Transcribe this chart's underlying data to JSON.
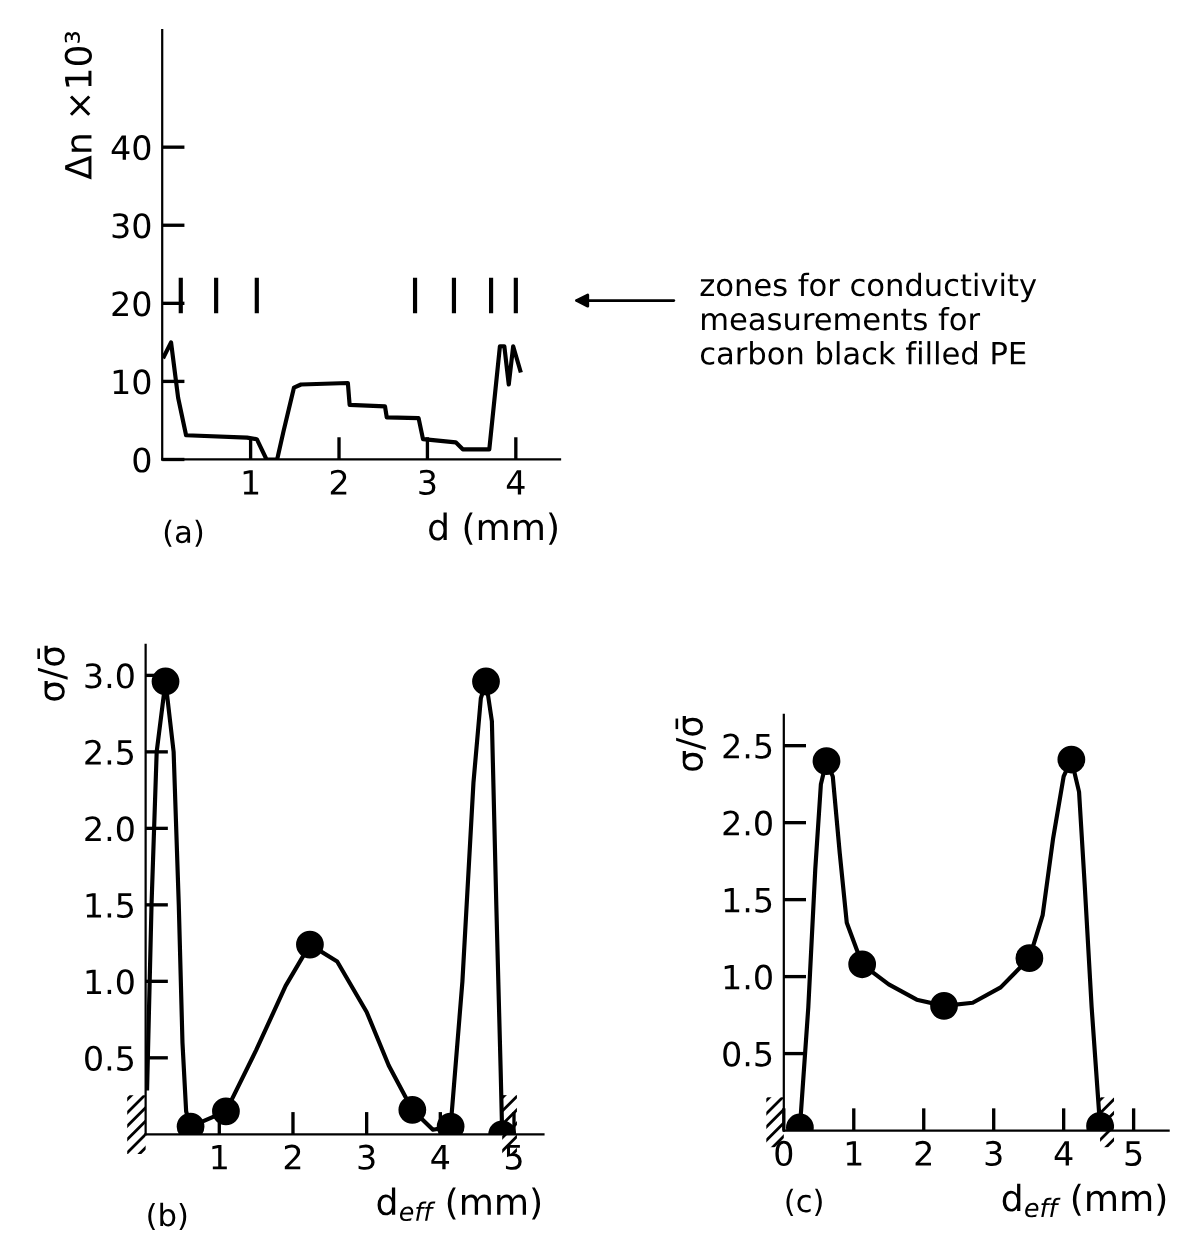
{
  "chart_data": [
    {
      "type": "line",
      "xlabel": "d (mm)",
      "ylabel": "Δn ×10³",
      "xlim": [
        0,
        4.5
      ],
      "ylim": [
        0,
        55
      ],
      "xticks": [
        1,
        2,
        3,
        4
      ],
      "yticks": [
        0,
        10,
        20,
        30,
        40
      ],
      "grid": false,
      "legend": false,
      "annotations": [
        "(a)",
        "zones for conductivity\nmeasurements for\ncarbon black filled PE"
      ],
      "series": [
        {
          "color": "#000000",
          "marker": "none",
          "x": [
            0.02,
            0.1,
            0.18,
            0.27,
            0.96,
            1.07,
            1.18,
            1.3,
            1.37,
            1.49,
            1.57,
            2.1,
            2.12,
            2.52,
            2.54,
            2.9,
            2.95,
            3.32,
            3.4,
            3.7,
            3.82,
            3.87,
            3.92,
            3.97,
            4.05
          ],
          "values": [
            13.2,
            15,
            7.9,
            3.1,
            2.8,
            2.6,
            0,
            0,
            3.5,
            9.2,
            9.6,
            9.8,
            7.0,
            6.8,
            5.4,
            5.3,
            2.6,
            2.2,
            1.3,
            1.3,
            14.5,
            14.5,
            9.6,
            14.5,
            11.4
          ]
        },
        {
          "color": "#000000",
          "marker": "none",
          "x": [
            0.21,
            0.21
          ],
          "values": [
            19,
            23
          ]
        },
        {
          "color": "#000000",
          "marker": "none",
          "x": [
            0.61,
            0.61
          ],
          "values": [
            19,
            23
          ]
        },
        {
          "color": "#000000",
          "marker": "none",
          "x": [
            1.07,
            1.07
          ],
          "values": [
            19,
            23
          ]
        },
        {
          "color": "#000000",
          "marker": "none",
          "x": [
            2.86,
            2.86
          ],
          "values": [
            19,
            23
          ]
        },
        {
          "color": "#000000",
          "marker": "none",
          "x": [
            3.3,
            3.3
          ],
          "values": [
            19,
            23
          ]
        },
        {
          "color": "#000000",
          "marker": "none",
          "x": [
            3.72,
            3.72
          ],
          "values": [
            19,
            23
          ]
        },
        {
          "color": "#000000",
          "marker": "none",
          "x": [
            4.0,
            4.0
          ],
          "values": [
            19,
            23
          ]
        }
      ]
    },
    {
      "type": "line",
      "xlabel": "d$_{eff}$ (mm)",
      "ylabel": "σ/σ̄",
      "xlim": [
        0,
        5.4
      ],
      "ylim": [
        0,
        3.2
      ],
      "xticks": [
        1,
        2,
        3,
        4,
        5
      ],
      "yticks": [
        0.5,
        {
          "value": 1,
          "label": "1.0"
        },
        1.5,
        {
          "value": 2,
          "label": "2.0"
        },
        2.5,
        {
          "value": 3,
          "label": "3.0"
        }
      ],
      "grid": false,
      "legend": false,
      "annotations": [
        "(b)"
      ],
      "series": [
        {
          "color": "#000000",
          "marker": "none",
          "x": [
            0.02,
            0.08,
            0.15,
            0.27,
            0.38,
            0.45,
            0.5,
            0.55,
            0.61,
            1.09,
            1.5,
            1.9,
            2.23,
            2.6,
            3.0,
            3.3,
            3.62,
            3.9,
            4.14,
            4.3,
            4.45,
            4.55,
            4.62,
            4.7,
            4.76,
            4.82,
            4.84
          ],
          "values": [
            0.3,
            1.5,
            2.5,
            2.96,
            2.5,
            1.5,
            0.6,
            0.15,
            0.05,
            0.15,
            0.55,
            0.97,
            1.24,
            1.13,
            0.8,
            0.45,
            0.16,
            0.03,
            0.05,
            1.0,
            2.3,
            2.85,
            2.96,
            2.7,
            1.5,
            0.4,
            0
          ]
        },
        {
          "type": "scatter",
          "color": "#000000",
          "marker": "circle",
          "x": [
            0.27,
            0.61,
            1.09,
            2.23,
            3.62,
            4.14,
            4.62,
            4.84
          ],
          "values": [
            2.96,
            0.05,
            0.15,
            1.24,
            0.16,
            0.05,
            2.96,
            0
          ]
        }
      ]
    },
    {
      "type": "line",
      "xlabel": "d$_{eff}$ (mm)",
      "ylabel": "σ/σ̄",
      "xlim": [
        0,
        5.5
      ],
      "ylim": [
        0,
        2.7
      ],
      "xticks": [
        0,
        1,
        2,
        3,
        4,
        5
      ],
      "yticks": [
        0.5,
        {
          "value": 1,
          "label": "1.0"
        },
        1.5,
        {
          "value": 2,
          "label": "2.0"
        },
        2.5
      ],
      "grid": false,
      "legend": false,
      "annotations": [
        "(c)"
      ],
      "series": [
        {
          "color": "#000000",
          "marker": "none",
          "x": [
            0.23,
            0.35,
            0.45,
            0.53,
            0.61,
            0.7,
            0.8,
            0.9,
            1.12,
            1.5,
            1.9,
            2.29,
            2.7,
            3.1,
            3.51,
            3.7,
            3.85,
            4.0,
            4.11,
            4.22,
            4.3,
            4.4,
            4.52
          ],
          "values": [
            0.02,
            0.8,
            1.7,
            2.25,
            2.4,
            2.3,
            1.8,
            1.35,
            1.08,
            0.95,
            0.85,
            0.81,
            0.83,
            0.93,
            1.12,
            1.4,
            1.9,
            2.3,
            2.41,
            2.2,
            1.6,
            0.8,
            0.03
          ]
        },
        {
          "type": "scatter",
          "color": "#000000",
          "marker": "circle",
          "x": [
            0.23,
            0.61,
            1.12,
            2.29,
            3.51,
            4.11,
            4.52
          ],
          "values": [
            0.02,
            2.4,
            1.08,
            0.81,
            1.12,
            2.41,
            0.03
          ]
        }
      ]
    }
  ]
}
